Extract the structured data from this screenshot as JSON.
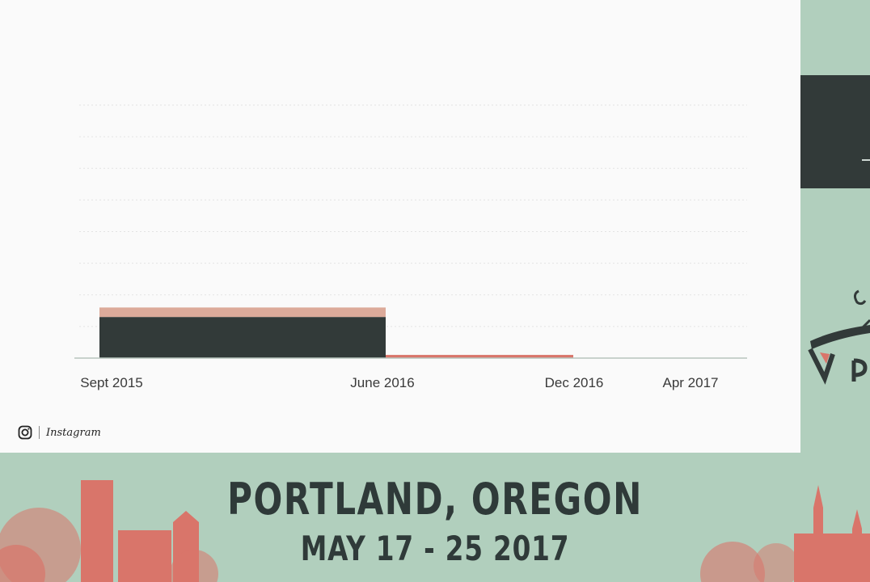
{
  "chart_data": {
    "type": "bar",
    "title": "",
    "xlabel": "",
    "ylabel": "",
    "x_ticks": [
      "Sept 2015",
      "June 2016",
      "Dec 2016",
      "Apr 2017"
    ],
    "series_colors": {
      "dark": "#323a39",
      "salmon": "#d9756a",
      "tan": "#dcaa9a"
    },
    "bars": [
      {
        "start": "Sept 2015",
        "end": "June 2016",
        "segments": [
          {
            "color": "dark",
            "value": 13
          },
          {
            "color": "tan",
            "value": 3
          }
        ]
      },
      {
        "start": "June 2016",
        "end": "Dec 2016",
        "segments": [
          {
            "color": "salmon",
            "value": 1
          }
        ]
      }
    ],
    "ylim": [
      0,
      80
    ],
    "grid": true
  },
  "footer": {
    "brand_name": "Instagram",
    "icon": "instagram-icon"
  },
  "banner": {
    "city": "PORTLAND, OREGON",
    "dates": "MAY 17 - 25 2017"
  },
  "colors": {
    "background": "#b1cfbd",
    "slide": "#fafafa",
    "dark": "#323a39",
    "salmon": "#d9756a"
  }
}
